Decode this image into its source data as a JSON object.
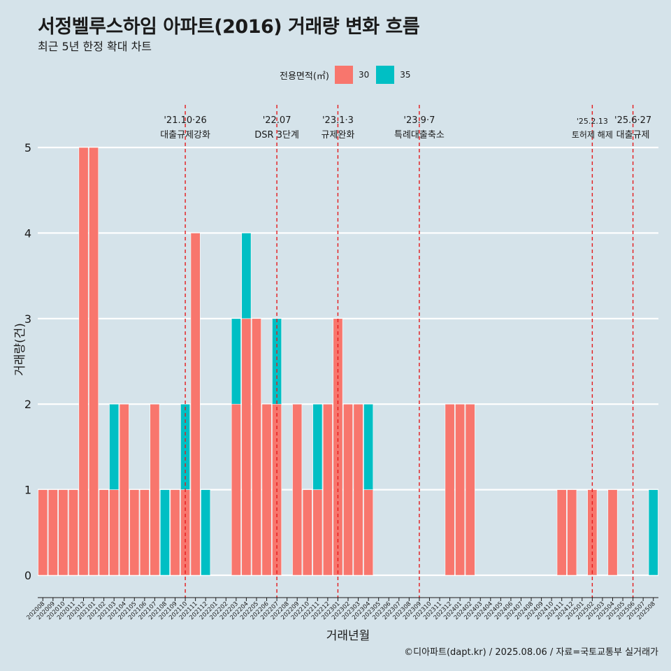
{
  "header": {
    "title": "서정벨루스하임 아파트(2016) 거래량 변화 흐름",
    "subtitle": "최근 5년 한정 확대 차트"
  },
  "legend": {
    "title": "전용면적(㎡)",
    "items": [
      {
        "label": "30",
        "color": "#f8766d"
      },
      {
        "label": "35",
        "color": "#00bfc4"
      }
    ]
  },
  "caption": "©디아파트(dapt.kr) / 2025.08.06 / 자료=국토교통부 실거래가",
  "chart_data": {
    "type": "bar",
    "stacked": true,
    "xlabel": "거래년월",
    "ylabel": "거래량(건)",
    "ylim": [
      0,
      5
    ],
    "yticks": [
      0,
      1,
      2,
      3,
      4,
      5
    ],
    "grid": true,
    "categories": [
      "202008",
      "202009",
      "202010",
      "202011",
      "202012",
      "202101",
      "202102",
      "202103",
      "202104",
      "202105",
      "202106",
      "202107",
      "202108",
      "202109",
      "202110",
      "202111",
      "202112",
      "202201",
      "202202",
      "202203",
      "202204",
      "202205",
      "202206",
      "202207",
      "202208",
      "202209",
      "202210",
      "202211",
      "202212",
      "202301",
      "202302",
      "202303",
      "202304",
      "202305",
      "202306",
      "202307",
      "202308",
      "202309",
      "202310",
      "202311",
      "202312",
      "202401",
      "202402",
      "202403",
      "202404",
      "202405",
      "202406",
      "202407",
      "202408",
      "202409",
      "202410",
      "202411",
      "202412",
      "202501",
      "202502",
      "202503",
      "202504",
      "202505",
      "202506",
      "202507",
      "202508"
    ],
    "series": [
      {
        "name": "30",
        "color": "#f8766d",
        "values": [
          1,
          1,
          1,
          1,
          5,
          5,
          1,
          1,
          2,
          1,
          1,
          2,
          0,
          1,
          1,
          4,
          0,
          0,
          0,
          2,
          3,
          3,
          2,
          2,
          0,
          2,
          1,
          1,
          2,
          3,
          2,
          2,
          1,
          0,
          0,
          0,
          0,
          0,
          0,
          0,
          2,
          2,
          2,
          0,
          0,
          0,
          0,
          0,
          0,
          0,
          0,
          1,
          1,
          0,
          1,
          0,
          1,
          0,
          0,
          0,
          0
        ]
      },
      {
        "name": "35",
        "color": "#00bfc4",
        "values": [
          0,
          0,
          0,
          0,
          0,
          0,
          0,
          1,
          0,
          0,
          0,
          0,
          1,
          0,
          1,
          0,
          1,
          0,
          0,
          1,
          1,
          0,
          0,
          1,
          0,
          0,
          0,
          1,
          0,
          0,
          0,
          0,
          1,
          0,
          0,
          0,
          0,
          0,
          0,
          0,
          0,
          0,
          0,
          0,
          0,
          0,
          0,
          0,
          0,
          0,
          0,
          0,
          0,
          0,
          0,
          0,
          0,
          0,
          0,
          0,
          1
        ]
      }
    ],
    "events": [
      {
        "date": "'21.10·26",
        "label": "대출규제강화",
        "x": "202110"
      },
      {
        "date": "'22.07",
        "label": "DSR 3단계",
        "x": "202207"
      },
      {
        "date": "'23.1·3",
        "label": "규제완화",
        "x": "202301"
      },
      {
        "date": "'23.9·7",
        "label": "특례대출축소",
        "x": "202309"
      },
      {
        "date": "'25.2.13",
        "label": "토허제 해제",
        "x": "202502"
      },
      {
        "date": "'25.6·27",
        "label": "대출규제",
        "x": "202506"
      }
    ]
  }
}
